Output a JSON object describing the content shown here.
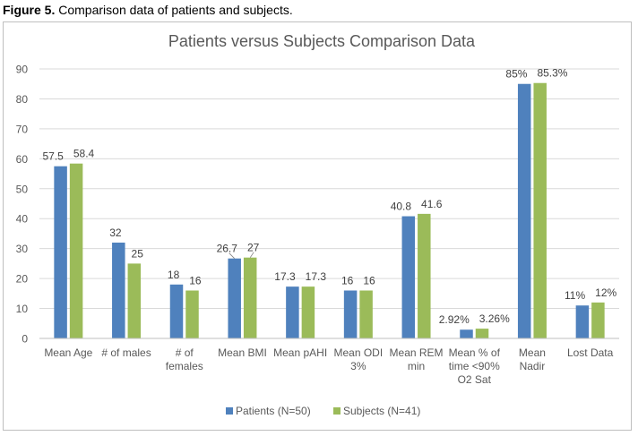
{
  "figure": {
    "label": "Figure 5.",
    "caption": " Comparison data of patients and subjects."
  },
  "chart_data": {
    "type": "bar",
    "title": "Patients versus Subjects Comparison Data",
    "xlabel": "",
    "ylabel": "",
    "ylim": [
      0,
      90
    ],
    "yticks": [
      0,
      10,
      20,
      30,
      40,
      50,
      60,
      70,
      80,
      90
    ],
    "grid": true,
    "legend": "bottom",
    "categories": [
      [
        "Mean Age"
      ],
      [
        "# of males"
      ],
      [
        "# of",
        "females"
      ],
      [
        "Mean BMI"
      ],
      [
        "Mean pAHI"
      ],
      [
        "Mean ODI",
        "3%"
      ],
      [
        "Mean REM",
        "min"
      ],
      [
        "Mean % of",
        "time <90%",
        "O2 Sat"
      ],
      [
        "Mean",
        "Nadir"
      ],
      [
        "Lost Data"
      ]
    ],
    "series": [
      {
        "name": "Patients (N=50)",
        "color": "#4f81bd",
        "values": [
          57.5,
          32,
          18,
          26.7,
          17.3,
          16,
          40.8,
          2.92,
          85,
          11
        ],
        "labels": [
          "57.5",
          "32",
          "18",
          "26.7",
          "17.3",
          "16",
          "40.8",
          "2.92%",
          "85%",
          "11%"
        ]
      },
      {
        "name": "Subjects (N=41)",
        "color": "#9bbb59",
        "values": [
          58.4,
          25,
          16,
          27,
          17.3,
          16,
          41.6,
          3.26,
          85.3,
          12
        ],
        "labels": [
          "58.4",
          "25",
          "16",
          "27",
          "17.3",
          "16",
          "41.6",
          "3.26%",
          "85.3%",
          "12%"
        ]
      }
    ]
  }
}
